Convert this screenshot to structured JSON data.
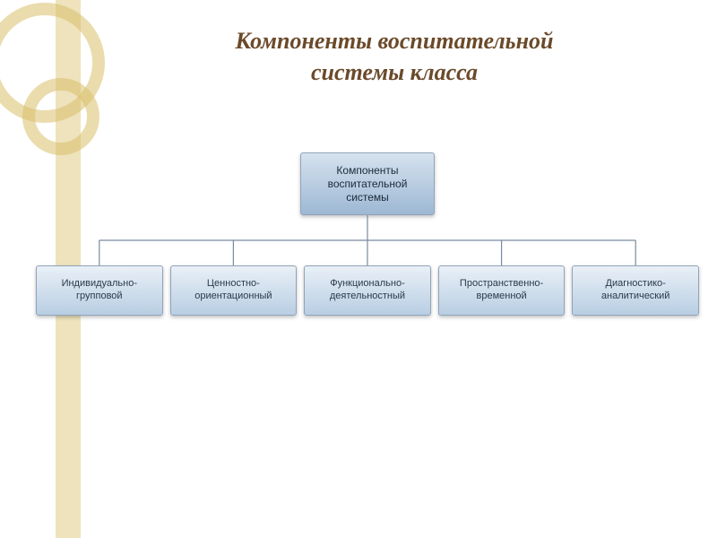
{
  "title": {
    "line1": "Компоненты воспитательной",
    "line2": "системы класса",
    "color": "#6b4a2a",
    "fontsize": 26
  },
  "decoration": {
    "circle_stroke": "#d9c06a",
    "circle_stroke_width": 14,
    "bar_fill": "#d9c06a",
    "bar_opacity": 0.45
  },
  "diagram": {
    "type": "tree",
    "connector_color": "#7a8aa0",
    "connector_width": 1.2,
    "root": {
      "label": "Компоненты воспитательной системы",
      "bg_top": "#d6e2ef",
      "bg_bottom": "#9db8d4",
      "text_color": "#1b2a3a",
      "fontsize": 12
    },
    "children": [
      {
        "label": "Индивидуально-групповой",
        "bg_top": "#e9f0f7",
        "bg_bottom": "#b9cee3",
        "text_color": "#2a3a4a",
        "fontsize": 11
      },
      {
        "label": "Ценностно-ориентационный",
        "bg_top": "#e9f0f7",
        "bg_bottom": "#b9cee3",
        "text_color": "#2a3a4a",
        "fontsize": 11
      },
      {
        "label": "Функционально-деятельностный",
        "bg_top": "#e9f0f7",
        "bg_bottom": "#b9cee3",
        "text_color": "#2a3a4a",
        "fontsize": 11
      },
      {
        "label": "Пространственно-временной",
        "bg_top": "#e9f0f7",
        "bg_bottom": "#b9cee3",
        "text_color": "#2a3a4a",
        "fontsize": 11
      },
      {
        "label": "Диагностико-аналитический",
        "bg_top": "#e9f0f7",
        "bg_bottom": "#b9cee3",
        "text_color": "#2a3a4a",
        "fontsize": 11
      }
    ]
  },
  "background_color": "#ffffff"
}
